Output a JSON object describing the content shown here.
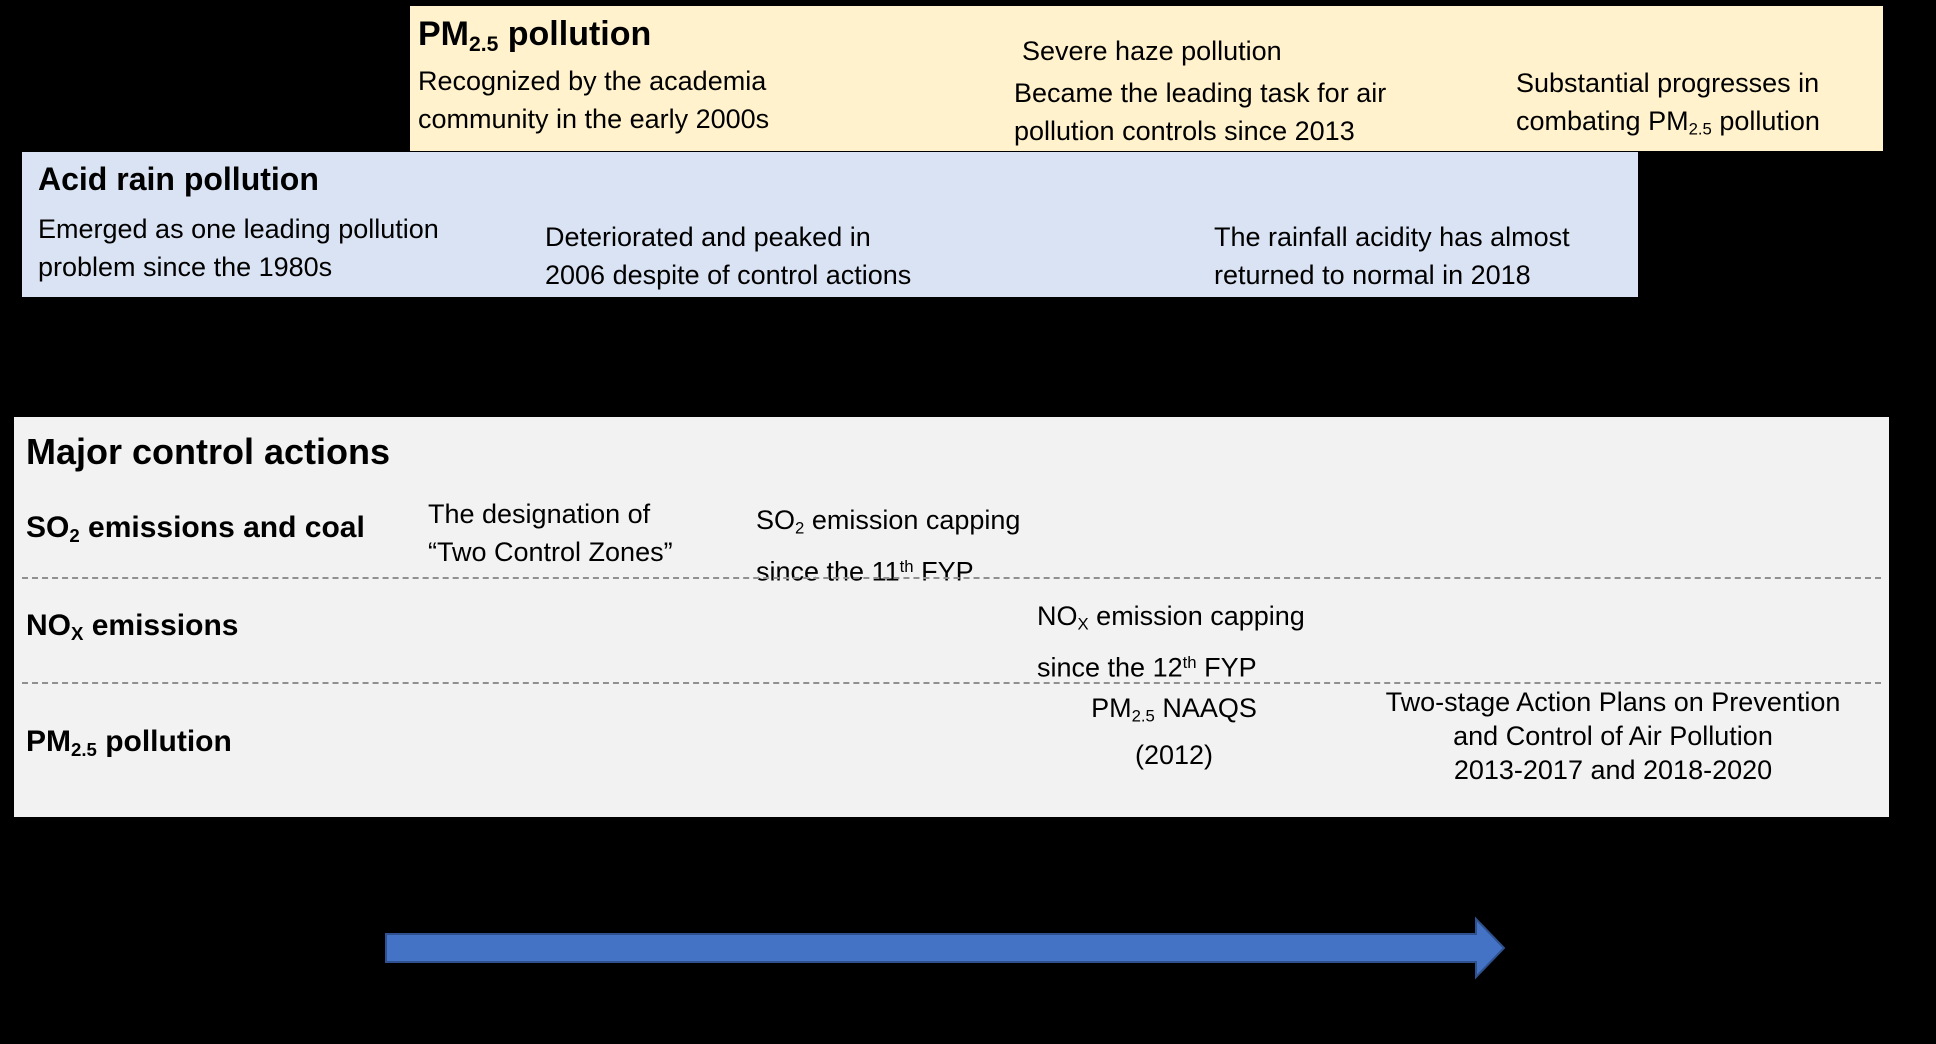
{
  "colors": {
    "background": "#000000",
    "pm_box": "#FFF2CC",
    "acid_box": "#DAE3F3",
    "actions_box": "#F2F2F2",
    "divider": "#909090",
    "arrow_fill": "#4472C4",
    "arrow_stroke": "#2F528F"
  },
  "pm_track": {
    "title": [
      [
        {
          "t": "PM"
        },
        {
          "sub": "2.5"
        },
        {
          "t": " pollution"
        }
      ]
    ],
    "recognized": [
      [
        {
          "t": "Recognized by the academia"
        }
      ],
      [
        {
          "t": "community in the early 2000s"
        }
      ]
    ],
    "severe_haze": [
      [
        {
          "t": "Severe haze pollution"
        }
      ]
    ],
    "leading_task": [
      [
        {
          "t": "Became the leading task for air"
        }
      ],
      [
        {
          "t": "pollution controls since 2013"
        }
      ]
    ],
    "progress": [
      [
        {
          "t": "Substantial progresses in"
        }
      ],
      [
        {
          "t": "combating PM"
        },
        {
          "sub": "2.5"
        },
        {
          "t": " pollution"
        }
      ]
    ]
  },
  "acid_track": {
    "title": "Acid rain pollution",
    "emerged": [
      [
        {
          "t": "Emerged as one leading pollution"
        }
      ],
      [
        {
          "t": "problem since the 1980s"
        }
      ]
    ],
    "peaked": [
      [
        {
          "t": "Deteriorated and peaked in"
        }
      ],
      [
        {
          "t": "2006 despite of control actions"
        }
      ]
    ],
    "returned": [
      [
        {
          "t": "The rainfall acidity has almost"
        }
      ],
      [
        {
          "t": "returned to normal in 2018"
        }
      ]
    ]
  },
  "actions": {
    "title": "Major control actions",
    "rows": [
      {
        "label": [
          [
            {
              "t": "SO"
            },
            {
              "sub": "2"
            },
            {
              "t": " emissions and coal"
            }
          ]
        ],
        "items": [
          {
            "lines": [
              [
                {
                  "t": "The designation of"
                }
              ],
              [
                {
                  "t": "“Two Control Zones”"
                }
              ]
            ]
          },
          {
            "lines": [
              [
                {
                  "t": "SO"
                },
                {
                  "sub": "2"
                },
                {
                  "t": " emission capping"
                }
              ],
              [
                {
                  "t": "since the 11"
                },
                {
                  "sup": "th"
                },
                {
                  "t": " FYP"
                }
              ]
            ]
          }
        ]
      },
      {
        "label": [
          [
            {
              "t": "NO"
            },
            {
              "sub": "X"
            },
            {
              "t": " emissions"
            }
          ]
        ],
        "items": [
          {
            "lines": [
              [
                {
                  "t": "NO"
                },
                {
                  "sub": "X"
                },
                {
                  "t": " emission capping"
                }
              ],
              [
                {
                  "t": "since the 12"
                },
                {
                  "sup": "th"
                },
                {
                  "t": " FYP"
                }
              ]
            ]
          }
        ]
      },
      {
        "label": [
          [
            {
              "t": "PM"
            },
            {
              "sub": "2.5"
            },
            {
              "t": " pollution"
            }
          ]
        ],
        "items": [
          {
            "lines": [
              [
                {
                  "t": "PM"
                },
                {
                  "sub": "2.5"
                },
                {
                  "t": " NAAQS"
                }
              ],
              [
                {
                  "t": "(2012)"
                }
              ]
            ]
          },
          {
            "lines": [
              [
                {
                  "t": "Two-stage Action Plans on Prevention"
                }
              ],
              [
                {
                  "t": "and Control of Air Pollution"
                }
              ],
              [
                {
                  "t": "2013-2017 and 2018-2020"
                }
              ]
            ]
          }
        ]
      }
    ]
  }
}
